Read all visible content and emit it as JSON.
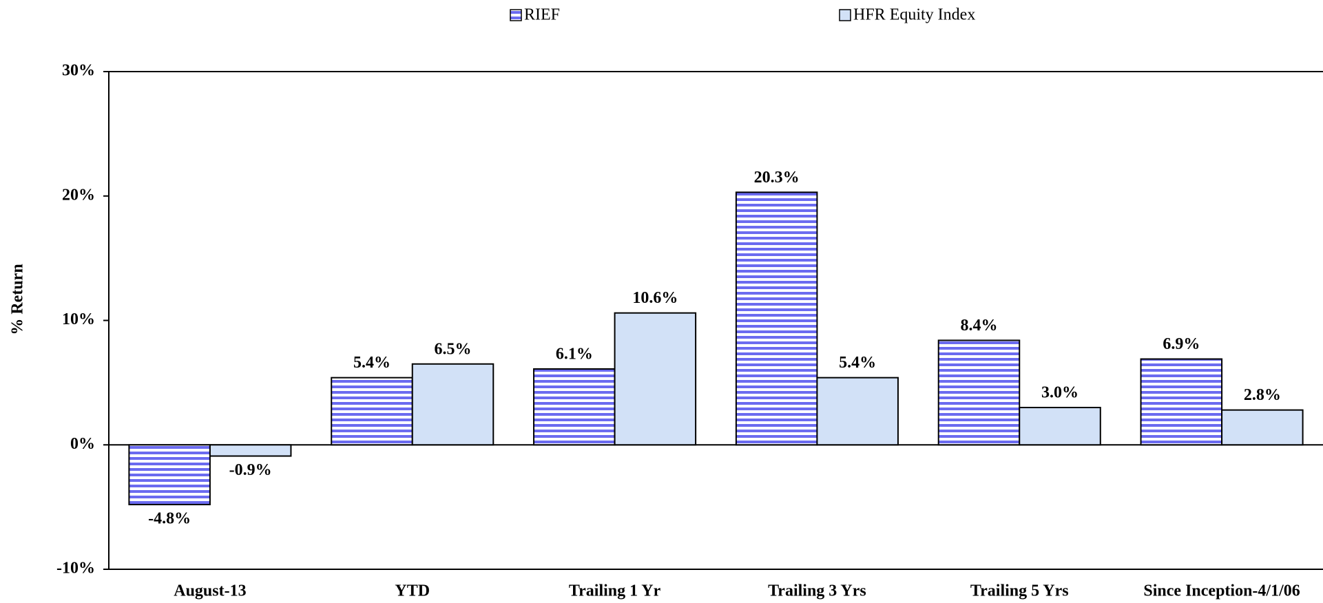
{
  "chart_data": {
    "type": "bar",
    "y_label": "% Return",
    "categories": [
      "August-13",
      "YTD",
      "Trailing 1 Yr",
      "Trailing 3 Yrs",
      "Trailing 5 Yrs",
      "Since Inception-4/1/06"
    ],
    "series": [
      {
        "name": "RIEF",
        "color": "#6b6bf0",
        "pattern": "horizontal-stripes",
        "values": [
          -4.8,
          5.4,
          6.1,
          20.3,
          8.4,
          6.9
        ],
        "value_labels": [
          "-4.8%",
          "5.4%",
          "6.1%",
          "20.3%",
          "8.4%",
          "6.9%"
        ]
      },
      {
        "name": "HFR Equity Index",
        "color": "#d2e1f7",
        "values": [
          -0.9,
          6.5,
          10.6,
          5.4,
          3.0,
          2.8
        ],
        "value_labels": [
          "-0.9%",
          "6.5%",
          "10.6%",
          "5.4%",
          "3.0%",
          "2.8%"
        ]
      }
    ],
    "negative_label_color": "#ff0000",
    "ylim": [
      -10,
      30
    ],
    "yticks": [
      {
        "value": -10,
        "label": "-10%"
      },
      {
        "value": 0,
        "label": "0%"
      },
      {
        "value": 10,
        "label": "10%"
      },
      {
        "value": 20,
        "label": "20%"
      },
      {
        "value": 30,
        "label": "30%"
      }
    ],
    "legend": "top"
  }
}
